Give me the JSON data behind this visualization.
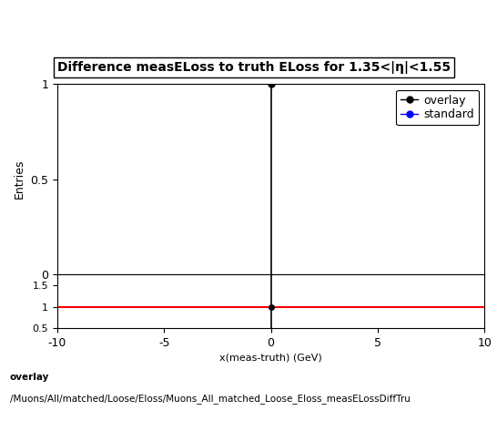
{
  "title": "Difference measELoss to truth ELoss for 1.35<|η|<1.55",
  "title_fontsize": 10,
  "xlabel": "x(meas-truth) (GeV)",
  "ylabel_main": "Entries",
  "xlim": [
    -10,
    10
  ],
  "ylim_main": [
    0,
    1.0
  ],
  "ylim_ratio": [
    0.5,
    1.75
  ],
  "yticks_main": [
    0,
    0.5,
    1
  ],
  "yticks_ratio": [
    0.5,
    1.0,
    1.5
  ],
  "xticks": [
    -10,
    -5,
    0,
    5,
    10
  ],
  "overlay_x": [
    0
  ],
  "overlay_y": [
    1
  ],
  "overlay_color": "#000000",
  "standard_color": "#0000ff",
  "ratio_line_color": "#ff0000",
  "ratio_line_y": 1.0,
  "legend_overlay": "overlay",
  "legend_standard": "standard",
  "vline_x": 0,
  "background_color": "#ffffff",
  "footer_text1": "overlay",
  "footer_text2": "/Muons/All/matched/Loose/Eloss/Muons_All_matched_Loose_Eloss_measELossDiffTru",
  "footer_fontsize": 7.5,
  "ratio_yticks_labels": [
    "0.5",
    "1",
    "1.5"
  ],
  "ratio_ytick_vals": [
    0.5,
    1.0,
    1.5
  ]
}
